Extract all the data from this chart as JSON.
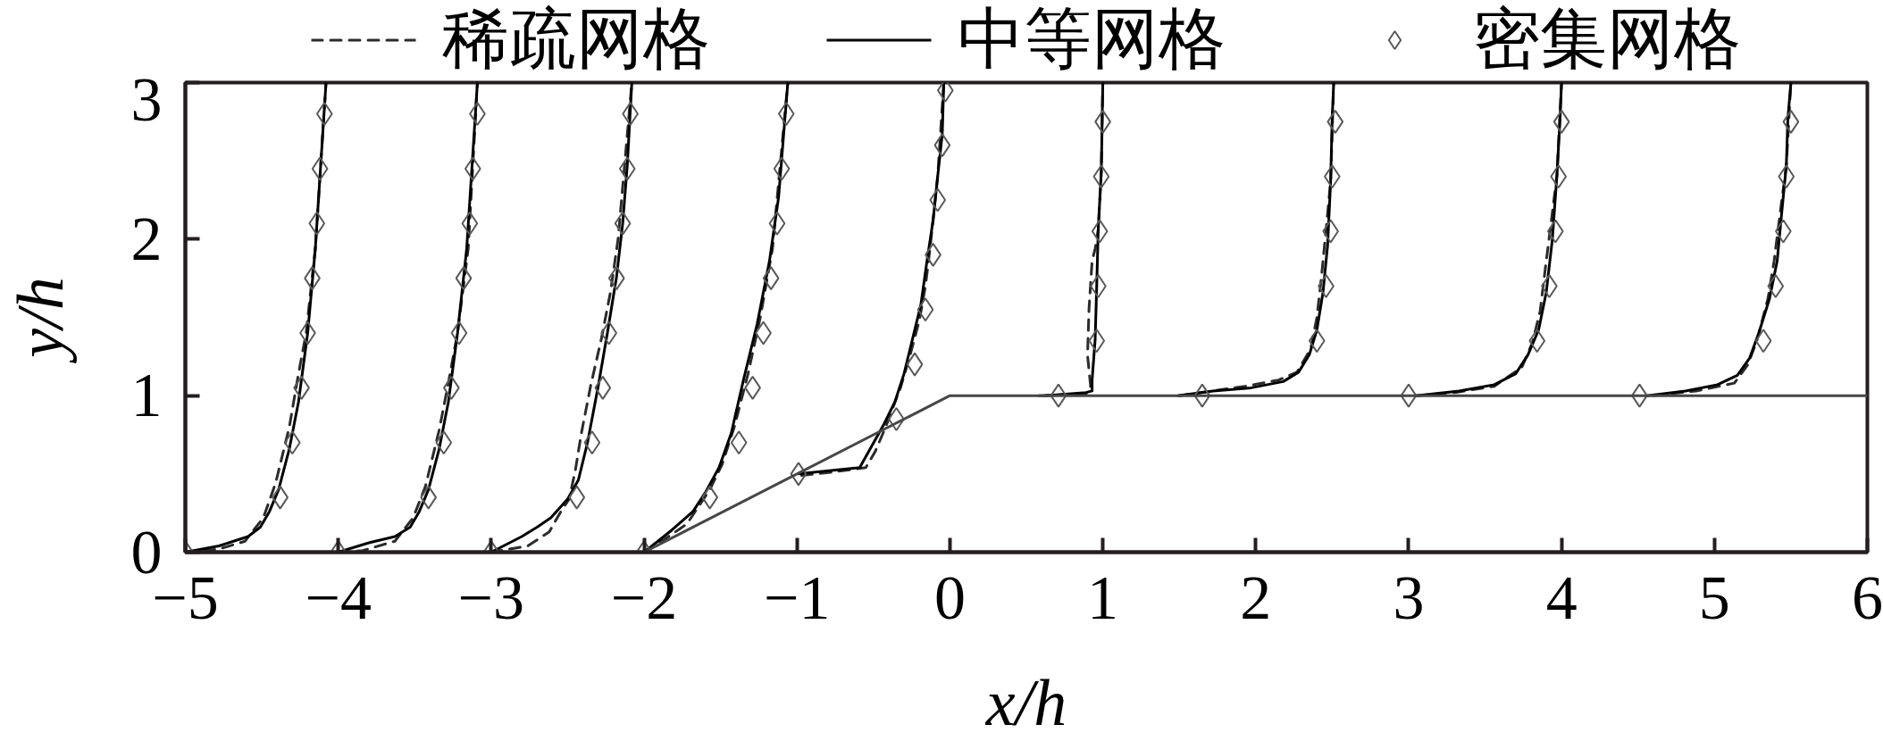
{
  "chart_data": {
    "type": "line",
    "xlabel": "x/h",
    "ylabel": "y/h",
    "xlim": [
      -5,
      6
    ],
    "ylim": [
      0,
      3
    ],
    "xticks": [
      {
        "value": -5,
        "label": "−5"
      },
      {
        "value": -4,
        "label": "−4"
      },
      {
        "value": -3,
        "label": "−3"
      },
      {
        "value": -2,
        "label": "−2"
      },
      {
        "value": -1,
        "label": "−1"
      },
      0,
      1,
      2,
      3,
      4,
      5,
      6
    ],
    "yticks": [
      0,
      1,
      2,
      3
    ],
    "legend": "top",
    "series": [
      {
        "name": "稀疏网格",
        "color": "#2b2b2b",
        "line_style": "dashed",
        "x": [
          -5,
          -4.78,
          -4.61,
          -4.49,
          -4.41,
          -4.32,
          -4.26,
          -4.21,
          -4.15,
          -4.08,
          null,
          -4.0,
          -3.84,
          -3.63,
          -3.51,
          -3.43,
          -3.34,
          -3.28,
          -3.22,
          -3.15,
          -3.09,
          null,
          -3.0,
          -2.76,
          -2.62,
          -2.55,
          -2.49,
          -2.45,
          -2.41,
          -2.35,
          -2.28,
          -2.22,
          -2.17,
          -2.08,
          null,
          -2.0,
          -1.87,
          -1.72,
          -1.57,
          -1.49,
          -1.41,
          -1.32,
          -1.24,
          -1.16,
          -1.06,
          null,
          -0.97,
          -0.78,
          -0.55,
          -0.49,
          -0.42,
          -0.32,
          -0.26,
          -0.2,
          -0.16,
          -0.13,
          -0.08,
          -0.04,
          null,
          0.58,
          0.89,
          0.92,
          0.9,
          0.91,
          0.93,
          0.95,
          0.97,
          0.99,
          1.0,
          null,
          1.5,
          1.72,
          1.93,
          2.15,
          2.27,
          2.36,
          2.4,
          2.43,
          2.46,
          2.49,
          2.51,
          null,
          3.05,
          3.3,
          3.56,
          3.74,
          3.81,
          3.86,
          3.9,
          3.94,
          3.97,
          4.0,
          null,
          4.6,
          4.88,
          5.13,
          5.22,
          5.28,
          5.35,
          5.39,
          5.43,
          5.47,
          5.5
        ],
        "values": [
          0,
          0.02,
          0.07,
          0.22,
          0.44,
          0.8,
          1.14,
          1.4,
          1.94,
          3.0,
          null,
          0,
          0.01,
          0.07,
          0.22,
          0.42,
          0.78,
          1.08,
          1.4,
          1.94,
          3.0,
          null,
          0,
          0.04,
          0.13,
          0.25,
          0.34,
          0.52,
          0.76,
          1.06,
          1.36,
          1.66,
          2.0,
          3.0,
          null,
          0,
          0.08,
          0.18,
          0.4,
          0.56,
          0.8,
          1.14,
          1.5,
          1.94,
          3.0,
          null,
          0.49,
          0.51,
          0.54,
          0.64,
          0.8,
          1.06,
          1.26,
          1.48,
          1.7,
          1.94,
          2.4,
          3.0,
          null,
          1.0,
          1.01,
          1.06,
          1.26,
          1.56,
          1.86,
          1.94,
          2.06,
          2.43,
          3.0,
          null,
          1.0,
          1.03,
          1.06,
          1.1,
          1.15,
          1.3,
          1.5,
          1.76,
          2.06,
          2.37,
          3.0,
          null,
          1.0,
          1.02,
          1.06,
          1.18,
          1.34,
          1.54,
          1.86,
          2.17,
          2.41,
          3.0,
          null,
          1.0,
          1.03,
          1.08,
          1.2,
          1.36,
          1.62,
          1.86,
          2.17,
          2.47,
          3.0
        ]
      },
      {
        "name": "中等网格",
        "color": "#000000",
        "line_style": "solid",
        "x": [
          -5,
          -4.78,
          -4.59,
          -4.51,
          -4.45,
          -4.39,
          -4.32,
          -4.26,
          -4.2,
          -4.15,
          -4.08,
          null,
          -4.0,
          -3.8,
          -3.63,
          -3.53,
          -3.47,
          -3.41,
          -3.34,
          -3.28,
          -3.22,
          -3.16,
          -3.09,
          null,
          -3.0,
          -2.8,
          -2.7,
          -2.61,
          -2.5,
          -2.43,
          -2.37,
          -2.3,
          -2.24,
          -2.18,
          -2.14,
          -2.11,
          -2.08,
          null,
          -2.0,
          -1.82,
          -1.68,
          -1.6,
          -1.51,
          -1.43,
          -1.35,
          -1.26,
          -1.18,
          -1.12,
          -1.06,
          null,
          -0.99,
          -0.59,
          -0.51,
          -0.43,
          -0.36,
          -0.3,
          -0.25,
          -0.19,
          -0.15,
          -0.11,
          -0.08,
          -0.05,
          -0.04,
          null,
          0.62,
          0.89,
          0.93,
          0.93,
          0.95,
          0.96,
          0.97,
          0.99,
          1.0,
          null,
          1.49,
          1.72,
          1.97,
          2.18,
          2.28,
          2.35,
          2.4,
          2.44,
          2.47,
          2.49,
          2.5,
          2.51,
          null,
          3.05,
          3.33,
          3.56,
          3.7,
          3.78,
          3.85,
          3.9,
          3.94,
          3.97,
          3.99,
          4.0,
          null,
          4.56,
          4.81,
          5.02,
          5.15,
          5.23,
          5.29,
          5.36,
          5.41,
          5.44,
          5.47,
          5.48,
          5.5
        ],
        "values": [
          0,
          0.04,
          0.1,
          0.16,
          0.26,
          0.4,
          0.66,
          0.96,
          1.4,
          1.94,
          3.0,
          null,
          0,
          0.06,
          0.1,
          0.16,
          0.26,
          0.4,
          0.66,
          0.96,
          1.4,
          1.94,
          3.0,
          null,
          0,
          0.1,
          0.16,
          0.22,
          0.34,
          0.46,
          0.7,
          1.06,
          1.4,
          1.76,
          2.1,
          2.47,
          3.0,
          null,
          0,
          0.14,
          0.26,
          0.38,
          0.54,
          0.76,
          1.1,
          1.46,
          1.86,
          2.27,
          3.0,
          null,
          0.5,
          0.54,
          0.68,
          0.82,
          0.96,
          1.14,
          1.34,
          1.58,
          1.86,
          2.12,
          2.4,
          2.67,
          3.0,
          null,
          1.0,
          1.02,
          1.03,
          1.1,
          1.36,
          1.7,
          2.06,
          2.43,
          3.0,
          null,
          1.0,
          1.03,
          1.05,
          1.09,
          1.15,
          1.26,
          1.42,
          1.66,
          1.96,
          2.37,
          2.77,
          3.0,
          null,
          1.0,
          1.03,
          1.07,
          1.14,
          1.26,
          1.42,
          1.66,
          2.0,
          2.41,
          2.77,
          3.0,
          null,
          1.0,
          1.03,
          1.07,
          1.13,
          1.24,
          1.4,
          1.62,
          1.86,
          2.17,
          2.47,
          2.77,
          3.0
        ]
      },
      {
        "name": "密集网格",
        "type": "scatter",
        "marker": "diamond",
        "color": "#595959",
        "x": [
          -5,
          -4.38,
          -4.3,
          -4.24,
          -4.2,
          -4.17,
          -4.14,
          -4.12,
          -4.09,
          -4.0,
          -3.41,
          -3.31,
          -3.26,
          -3.21,
          -3.18,
          -3.14,
          -3.12,
          -3.09,
          -3.0,
          -2.44,
          -2.34,
          -2.27,
          -2.23,
          -2.18,
          -2.14,
          -2.11,
          -2.09,
          -2.0,
          -1.57,
          -1.38,
          -1.29,
          -1.22,
          -1.17,
          -1.13,
          -1.1,
          -1.07,
          -0.99,
          -0.35,
          -0.23,
          -0.16,
          -0.11,
          -0.08,
          -0.05,
          -0.03,
          0.71,
          0.96,
          0.97,
          0.98,
          0.99,
          1.0,
          1.65,
          2.4,
          2.46,
          2.49,
          2.5,
          2.52,
          3.0,
          3.84,
          3.92,
          3.96,
          3.98,
          4.0,
          4.51,
          5.32,
          5.4,
          5.45,
          5.47,
          5.5
        ],
        "values": [
          0,
          0.35,
          0.7,
          1.05,
          1.4,
          1.75,
          2.1,
          2.45,
          2.8,
          0,
          0.35,
          0.7,
          1.05,
          1.4,
          1.75,
          2.1,
          2.45,
          2.8,
          0,
          0.35,
          0.7,
          1.05,
          1.4,
          1.75,
          2.1,
          2.45,
          2.8,
          0,
          0.35,
          0.7,
          1.05,
          1.4,
          1.75,
          2.1,
          2.45,
          2.8,
          0.5,
          0.85,
          1.2,
          1.55,
          1.9,
          2.25,
          2.6,
          2.95,
          1.0,
          1.35,
          1.7,
          2.05,
          2.4,
          2.75,
          1.0,
          1.35,
          1.7,
          2.05,
          2.4,
          2.75,
          1.0,
          1.35,
          1.7,
          2.05,
          2.4,
          2.75,
          1.0,
          1.35,
          1.7,
          2.05,
          2.4,
          2.75
        ]
      },
      {
        "color": "#474747",
        "line_style": "solid",
        "x": [
          -2,
          0,
          6
        ],
        "values": [
          0,
          1,
          1
        ]
      }
    ]
  }
}
